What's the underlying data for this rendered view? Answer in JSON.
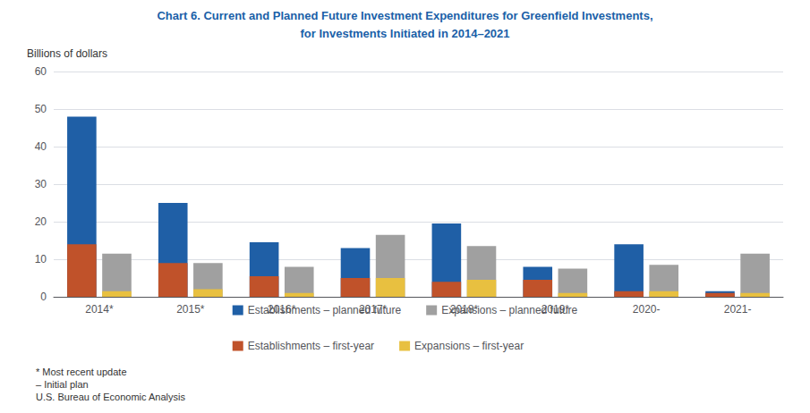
{
  "chart_data": {
    "type": "bar",
    "title": "Chart 6. Current and Planned Future Investment Expenditures for Greenfield Investments,",
    "subtitle": "for Investments Initiated in 2014–2021",
    "ylabel": "Billions of dollars",
    "categories": [
      "2014*",
      "2015*",
      "2016*",
      "2017*",
      "2018*",
      "2019*",
      "2020-",
      "2021-"
    ],
    "series": [
      {
        "name": "Establishments – planned future",
        "color": "#1f5fa6",
        "values": [
          48.0,
          25.0,
          14.5,
          13.0,
          19.5,
          8.0,
          14.0,
          1.5
        ]
      },
      {
        "name": "Expansions – planned future",
        "color": "#a0a0a0",
        "values": [
          11.5,
          9.0,
          8.0,
          16.5,
          13.5,
          7.5,
          8.5,
          11.5
        ]
      },
      {
        "name": "Establishments – first-year",
        "color": "#c0522a",
        "values": [
          14.0,
          9.0,
          5.5,
          5.0,
          4.0,
          4.5,
          1.5,
          1.0
        ]
      },
      {
        "name": "Expansions – first-year",
        "color": "#e8c040",
        "values": [
          1.5,
          2.0,
          1.0,
          5.0,
          4.5,
          1.0,
          1.5,
          1.0
        ]
      }
    ],
    "ylim": [
      0,
      60
    ],
    "yticks": [
      0,
      10,
      20,
      30,
      40,
      50,
      60
    ],
    "grid": true,
    "legend": "bottom",
    "annotations": [
      "* Most recent update",
      "– Initial plan",
      "U.S. Bureau of Economic Analysis"
    ]
  }
}
